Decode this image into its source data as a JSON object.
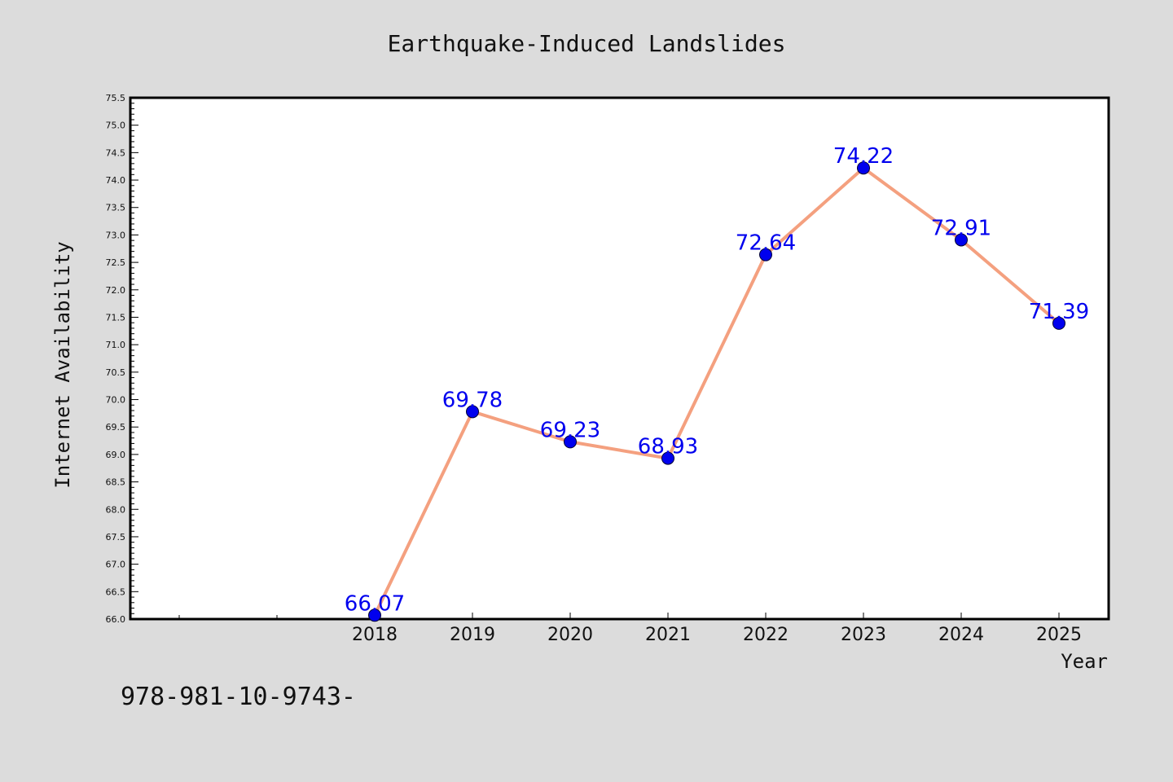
{
  "chart_data": {
    "type": "line",
    "title": "Earthquake-Induced Landslides",
    "xlabel": "Year",
    "ylabel": "Internet Availability",
    "x": [
      "2018",
      "2019",
      "2020",
      "2021",
      "2022",
      "2023",
      "2024",
      "2025"
    ],
    "series": [
      {
        "values": [
          66.07,
          69.78,
          69.23,
          68.93,
          72.64,
          74.22,
          72.91,
          71.39
        ],
        "data_labels": [
          "66.07",
          "69.78",
          "69.23",
          "68.93",
          "72.64",
          "74.22",
          "72.91",
          "71.39"
        ]
      }
    ],
    "ylim": [
      66.0,
      75.5
    ],
    "yticks": [
      "66.0",
      "66.5",
      "67.0",
      "67.5",
      "68.0",
      "68.5",
      "69.0",
      "69.5",
      "70.0",
      "70.5",
      "71.0",
      "71.5",
      "72.0",
      "72.5",
      "73.0",
      "73.5",
      "74.0",
      "74.5",
      "75.0",
      "75.5"
    ],
    "grid": false,
    "line_color": "#f4a07f",
    "marker_color": "#0000ee",
    "label_color": "#0000ee"
  },
  "footer": {
    "text": "978-981-10-9743-"
  }
}
